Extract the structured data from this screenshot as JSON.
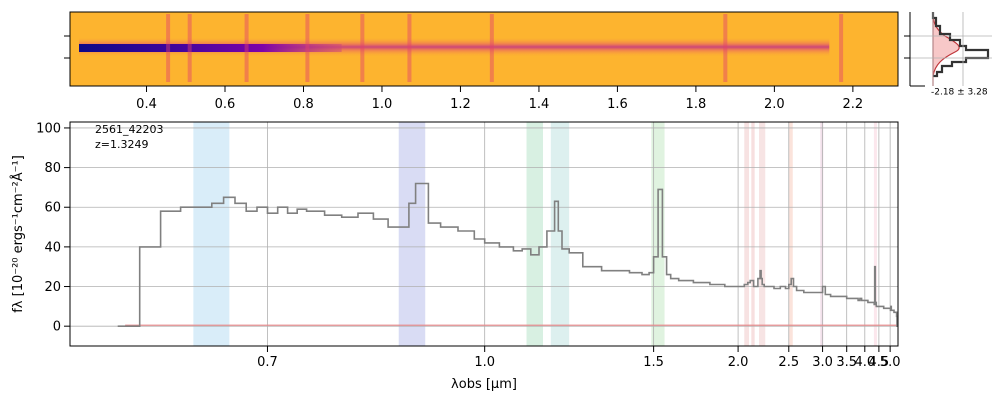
{
  "chart_data": [
    {
      "type": "heatmap",
      "panel": "2d-spectrum",
      "colormap": "plasma",
      "colors": {
        "background": "#fdb42f",
        "trace": "#e3406c",
        "core": "#2a0593"
      },
      "x_axis": "rest-frame-wavelength-um",
      "ticks": [
        0.4,
        0.6,
        0.8,
        1.0,
        1.2,
        1.4,
        1.6,
        1.8,
        2.0,
        2.2
      ],
      "tick_labels": [
        "0.4",
        "0.6",
        "0.8",
        "1.0",
        "1.2",
        "1.4",
        "1.6",
        "1.8",
        "2.0",
        "2.2"
      ],
      "xlim": [
        0.205,
        2.315
      ],
      "trace_extent": [
        0.228,
        2.14
      ],
      "bright_columns": [
        0.455,
        0.51,
        0.655,
        0.81,
        0.95,
        1.07,
        1.28,
        1.875,
        2.17
      ]
    },
    {
      "type": "histogram",
      "panel": "pixel-distribution",
      "label": "-2.18 ± 3.28",
      "colors": {
        "fill": "#f7c8c8",
        "data": "#333333",
        "model": "#c0353a"
      }
    },
    {
      "type": "line",
      "panel": "1d-spectrum",
      "annotation": {
        "id": "2561_42203",
        "redshift": "z=1.3249"
      },
      "xlabel": "λobs [μm]",
      "ylabel": "fλ [10⁻²⁰ ergs⁻¹cm⁻²Å⁻¹]",
      "xlim": [
        0.55,
        5.42
      ],
      "ylim": [
        -10,
        103
      ],
      "xscale": "reciprocal",
      "x_ticks": [
        0.7,
        1.0,
        1.5,
        2.0,
        2.5,
        3.0,
        3.5,
        4.0,
        4.5,
        5.0
      ],
      "x_tick_labels": [
        "0.7",
        "1.0",
        "1.5",
        "2.0",
        "2.5",
        "3.0",
        "3.5",
        "4.0",
        "4.5",
        "5.0"
      ],
      "y_ticks": [
        0,
        20,
        40,
        60,
        80,
        100
      ],
      "y_tick_labels": [
        "0",
        "20",
        "40",
        "60",
        "80",
        "100"
      ],
      "grid": true,
      "colors": {
        "spectrum": "#808080",
        "error": "#e8888a",
        "grid": "#b0b0b0"
      },
      "spectrum": {
        "x": [
          0.58,
          0.595,
          0.61,
          0.625,
          0.64,
          0.65,
          0.66,
          0.67,
          0.68,
          0.69,
          0.7,
          0.71,
          0.72,
          0.73,
          0.74,
          0.76,
          0.78,
          0.8,
          0.82,
          0.84,
          0.86,
          0.87,
          0.88,
          0.9,
          0.92,
          0.95,
          0.98,
          1.0,
          1.03,
          1.06,
          1.08,
          1.1,
          1.12,
          1.14,
          1.16,
          1.17,
          1.18,
          1.2,
          1.24,
          1.3,
          1.35,
          1.4,
          1.45,
          1.48,
          1.5,
          1.52,
          1.54,
          1.56,
          1.58,
          1.62,
          1.66,
          1.7,
          1.75,
          1.8,
          1.85,
          1.9,
          1.95,
          2.0,
          2.05,
          2.08,
          2.1,
          2.13,
          2.17,
          2.19,
          2.2,
          2.21,
          2.23,
          2.27,
          2.33,
          2.4,
          2.46,
          2.5,
          2.53,
          2.56,
          2.6,
          2.7,
          2.8,
          2.88,
          2.94,
          2.98,
          3.0,
          3.05,
          3.15,
          3.3,
          3.5,
          3.7,
          3.8,
          3.85,
          3.9,
          4.0,
          4.1,
          4.2,
          4.28,
          4.32,
          4.34,
          4.36,
          4.4,
          4.5,
          4.6,
          4.7,
          4.8,
          4.9,
          5.0,
          5.02,
          5.04,
          5.06,
          5.1,
          5.2,
          5.3,
          5.34,
          5.36,
          5.4
        ],
        "y": [
          0,
          40,
          58,
          60,
          60,
          62,
          65,
          62,
          58,
          60,
          57,
          60,
          57,
          59,
          58,
          56,
          55,
          57,
          54,
          50,
          50,
          62,
          72,
          52,
          50,
          48,
          44,
          42,
          40,
          38,
          39,
          36,
          40,
          48,
          63,
          48,
          39,
          37,
          30,
          28,
          28,
          27,
          26,
          27,
          35,
          69,
          35,
          26,
          24,
          23,
          23,
          22,
          22,
          21,
          21,
          20,
          20,
          20,
          21,
          22,
          23,
          20,
          24,
          28,
          24,
          21,
          20,
          20,
          19,
          20,
          19,
          21,
          24,
          20,
          18,
          17,
          17,
          17,
          17,
          17,
          20,
          16,
          15,
          15,
          14,
          14,
          13,
          14,
          13,
          13,
          12,
          12,
          12,
          11,
          30,
          12,
          10,
          10,
          10,
          9,
          9,
          9,
          9,
          8,
          10,
          8,
          8,
          7,
          7,
          5,
          0,
          0
        ]
      },
      "error_level": 0.5,
      "emission_bands": [
        {
          "x": [
            0.635,
            0.665
          ],
          "color": "#c9e6f7"
        },
        {
          "x": [
            0.855,
            0.895
          ],
          "color": "#c9cdf0"
        },
        {
          "x": [
            1.09,
            1.13
          ],
          "color": "#c8ead6"
        },
        {
          "x": [
            1.15,
            1.2
          ],
          "color": "#cfe9e8"
        },
        {
          "x": [
            1.49,
            1.55
          ],
          "color": "#d3eed3"
        },
        {
          "x": [
            2.05,
            2.09
          ],
          "color": "#f3d6d6"
        },
        {
          "x": [
            2.11,
            2.14
          ],
          "color": "#f3d2d2"
        },
        {
          "x": [
            2.18,
            2.24
          ],
          "color": "#f3d9d9"
        },
        {
          "x": [
            2.5,
            2.55
          ],
          "color": "#fad7cc"
        },
        {
          "x": [
            2.96,
            3.0
          ],
          "color": "#ecd3e2"
        },
        {
          "x": [
            4.31,
            4.37
          ],
          "color": "#fbdde6"
        }
      ]
    }
  ]
}
